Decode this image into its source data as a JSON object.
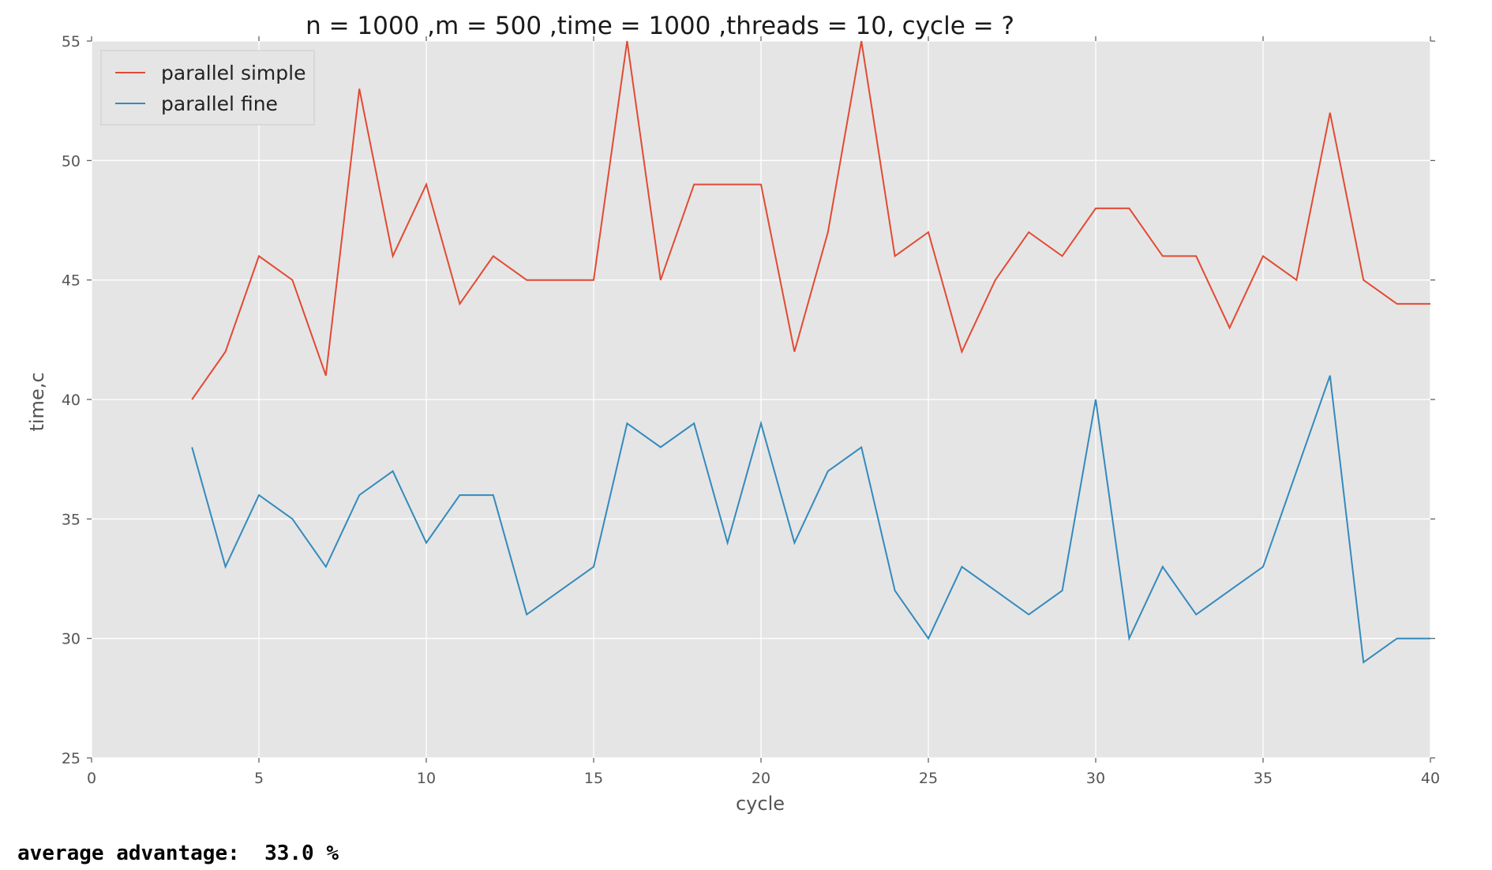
{
  "chart_data": {
    "type": "line",
    "title": "n = 1000 ,m = 500 ,time = 1000 ,threads = 10, cycle = ?",
    "xlabel": "cycle",
    "ylabel": "time,c",
    "xlim": [
      0,
      40
    ],
    "ylim": [
      25,
      55
    ],
    "xticks": [
      0,
      5,
      10,
      15,
      20,
      25,
      30,
      35,
      40
    ],
    "yticks": [
      25,
      30,
      35,
      40,
      45,
      50,
      55
    ],
    "grid": true,
    "legend_position": "top-left",
    "x": [
      3,
      4,
      5,
      6,
      7,
      8,
      9,
      10,
      11,
      12,
      13,
      14,
      15,
      16,
      17,
      18,
      19,
      20,
      21,
      22,
      23,
      24,
      25,
      26,
      27,
      28,
      29,
      30,
      31,
      32,
      33,
      34,
      35,
      36,
      37,
      38,
      39,
      40
    ],
    "series": [
      {
        "name": "parallel simple",
        "color": "#e24a33",
        "values": [
          40,
          42,
          46,
          45,
          41,
          53,
          46,
          49,
          44,
          46,
          45,
          45,
          45,
          55,
          45,
          49,
          49,
          49,
          42,
          47,
          55,
          46,
          47,
          42,
          45,
          47,
          46,
          48,
          48,
          46,
          46,
          43,
          46,
          45,
          52,
          45,
          44,
          44
        ]
      },
      {
        "name": "parallel fine",
        "color": "#348abd",
        "values": [
          38,
          33,
          36,
          35,
          33,
          36,
          37,
          34,
          36,
          36,
          31,
          32,
          33,
          39,
          38,
          39,
          34,
          39,
          34,
          37,
          38,
          32,
          30,
          33,
          32,
          31,
          32,
          40,
          30,
          33,
          31,
          32,
          33,
          37,
          41,
          29,
          30,
          30
        ]
      }
    ]
  },
  "footer": {
    "label": "average advantage:",
    "value": "33.0",
    "unit": "%"
  },
  "colors": {
    "plot_background": "#e5e5e5",
    "grid": "#ffffff"
  }
}
